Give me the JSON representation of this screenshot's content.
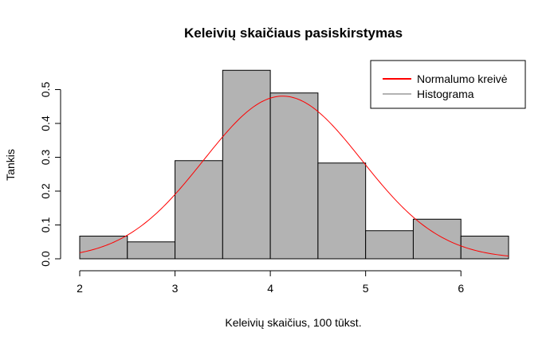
{
  "chart_data": {
    "type": "bar",
    "title": "Keleivių skaičiaus pasiskirstymas",
    "xlabel": "Keleivių skaičius, 100 tūkst.",
    "ylabel": "Tankis",
    "xlim": [
      2,
      6.5
    ],
    "ylim": [
      0,
      0.56
    ],
    "x_ticks": [
      2,
      3,
      4,
      5,
      6
    ],
    "y_ticks": [
      0.0,
      0.1,
      0.2,
      0.3,
      0.4,
      0.5
    ],
    "x_tick_labels": [
      "2",
      "3",
      "4",
      "5",
      "6"
    ],
    "y_tick_labels": [
      "0.0",
      "0.1",
      "0.2",
      "0.3",
      "0.4",
      "0.5"
    ],
    "histogram": {
      "bins": [
        {
          "from": 2.0,
          "to": 2.5,
          "density": 0.067
        },
        {
          "from": 2.5,
          "to": 3.0,
          "density": 0.05
        },
        {
          "from": 3.0,
          "to": 3.5,
          "density": 0.29
        },
        {
          "from": 3.5,
          "to": 4.0,
          "density": 0.557
        },
        {
          "from": 4.0,
          "to": 4.5,
          "density": 0.49
        },
        {
          "from": 4.5,
          "to": 5.0,
          "density": 0.283
        },
        {
          "from": 5.0,
          "to": 5.5,
          "density": 0.083
        },
        {
          "from": 5.5,
          "to": 6.0,
          "density": 0.117
        },
        {
          "from": 6.0,
          "to": 6.5,
          "density": 0.067
        }
      ],
      "fill_color": "#b3b3b3",
      "stroke_color": "#000000"
    },
    "normal_curve": {
      "mean": 4.13,
      "sd": 0.83,
      "color": "#ff0000"
    },
    "grid": false,
    "legend_position": "top-right",
    "legend": [
      {
        "label": "Normalumo kreivė",
        "color": "#ff0000"
      },
      {
        "label": "Histograma",
        "color": "#b3b3b3"
      }
    ]
  }
}
